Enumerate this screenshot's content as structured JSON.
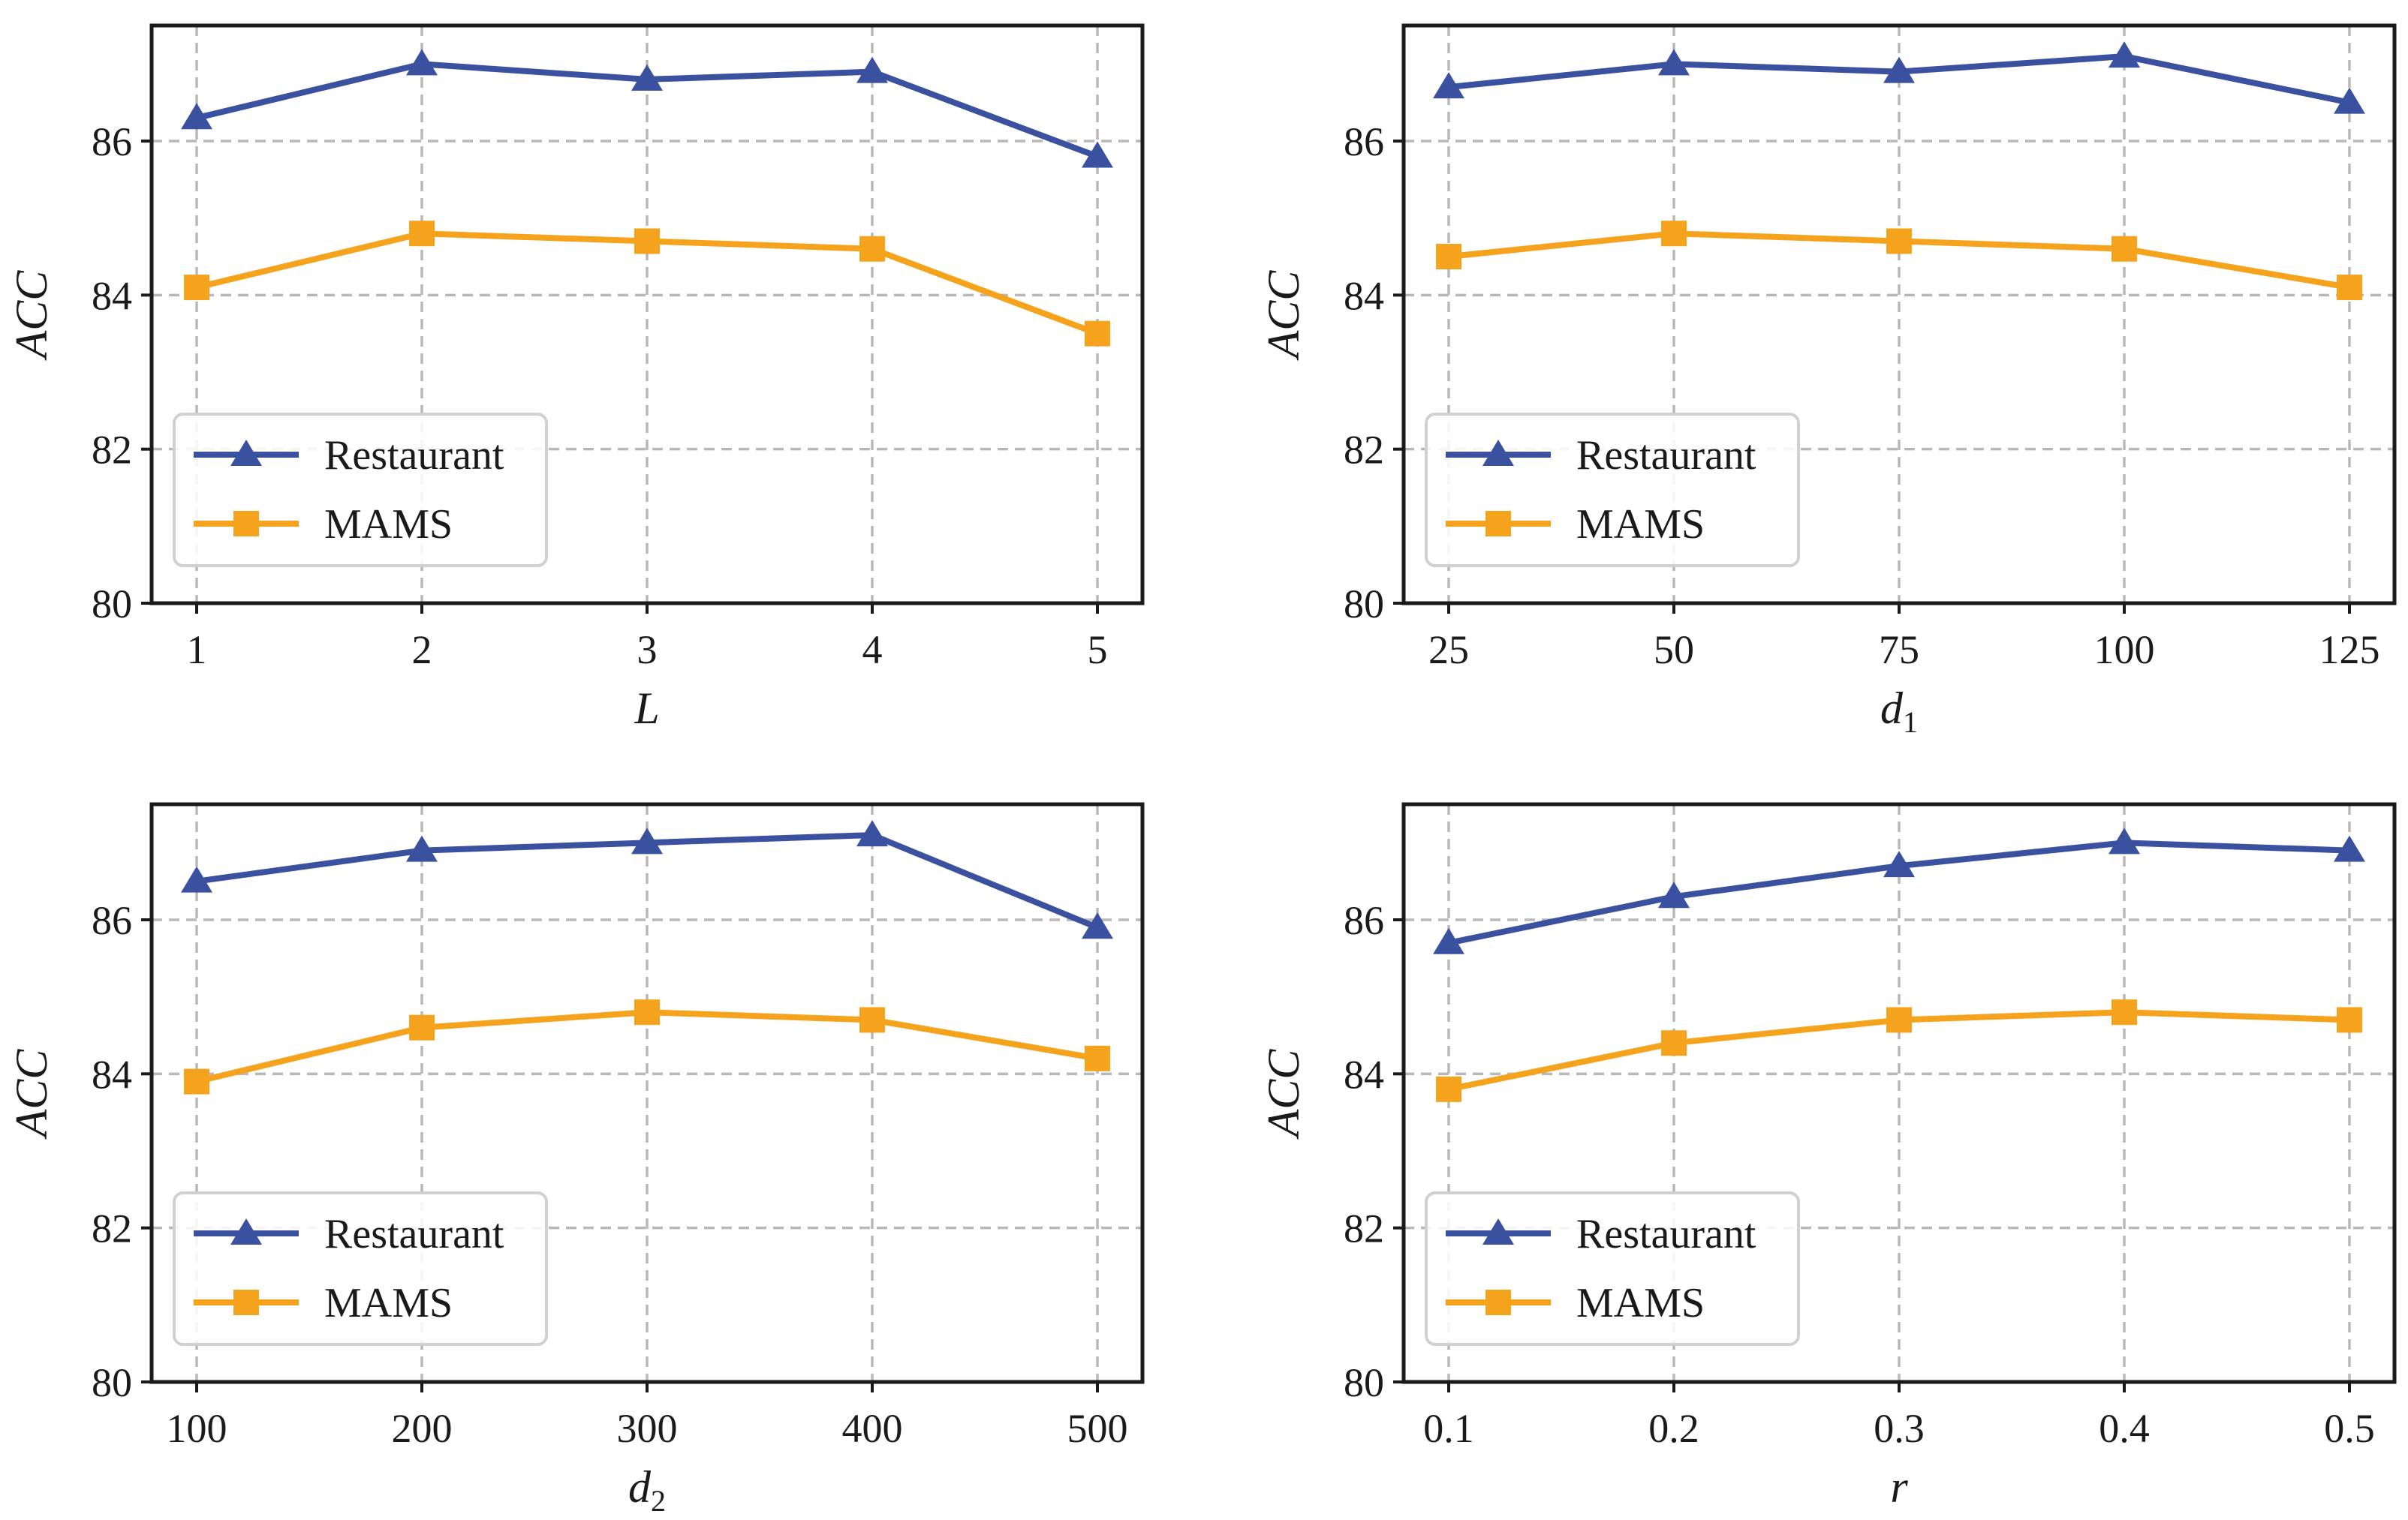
{
  "colors": {
    "restaurant": "#3a51a0",
    "mams": "#f5a31c"
  },
  "chart_data": [
    {
      "type": "line",
      "xlabel": "L",
      "xlabel_sub": "",
      "ylabel": "ACC",
      "categories": [
        "1",
        "2",
        "3",
        "4",
        "5"
      ],
      "yticks": [
        "80",
        "82",
        "84",
        "86"
      ],
      "ylim": [
        80,
        87.5
      ],
      "grid": true,
      "legend": {
        "placement": "lower-left",
        "entries": [
          "Restaurant",
          "MAMS"
        ]
      },
      "series": [
        {
          "name": "Restaurant",
          "marker": "triangle",
          "values": [
            86.3,
            87.0,
            86.8,
            86.9,
            85.8
          ]
        },
        {
          "name": "MAMS",
          "marker": "square",
          "values": [
            84.1,
            84.8,
            84.7,
            84.6,
            83.5
          ]
        }
      ]
    },
    {
      "type": "line",
      "xlabel": "d",
      "xlabel_sub": "1",
      "ylabel": "ACC",
      "categories": [
        "25",
        "50",
        "75",
        "100",
        "125"
      ],
      "yticks": [
        "80",
        "82",
        "84",
        "86"
      ],
      "ylim": [
        80,
        87.5
      ],
      "grid": true,
      "legend": {
        "placement": "lower-left",
        "entries": [
          "Restaurant",
          "MAMS"
        ]
      },
      "series": [
        {
          "name": "Restaurant",
          "marker": "triangle",
          "values": [
            86.7,
            87.0,
            86.9,
            87.1,
            86.5
          ]
        },
        {
          "name": "MAMS",
          "marker": "square",
          "values": [
            84.5,
            84.8,
            84.7,
            84.6,
            84.1
          ]
        }
      ]
    },
    {
      "type": "line",
      "xlabel": "d",
      "xlabel_sub": "2",
      "ylabel": "ACC",
      "categories": [
        "100",
        "200",
        "300",
        "400",
        "500"
      ],
      "yticks": [
        "80",
        "82",
        "84",
        "86"
      ],
      "ylim": [
        80,
        87.5
      ],
      "grid": true,
      "legend": {
        "placement": "lower-left",
        "entries": [
          "Restaurant",
          "MAMS"
        ]
      },
      "series": [
        {
          "name": "Restaurant",
          "marker": "triangle",
          "values": [
            86.5,
            86.9,
            87.0,
            87.1,
            85.9
          ]
        },
        {
          "name": "MAMS",
          "marker": "square",
          "values": [
            83.9,
            84.6,
            84.8,
            84.7,
            84.2
          ]
        }
      ]
    },
    {
      "type": "line",
      "xlabel": "r",
      "xlabel_sub": "",
      "ylabel": "ACC",
      "categories": [
        "0.1",
        "0.2",
        "0.3",
        "0.4",
        "0.5"
      ],
      "yticks": [
        "80",
        "82",
        "84",
        "86"
      ],
      "ylim": [
        80,
        87.5
      ],
      "grid": true,
      "legend": {
        "placement": "lower-left",
        "entries": [
          "Restaurant",
          "MAMS"
        ]
      },
      "series": [
        {
          "name": "Restaurant",
          "marker": "triangle",
          "values": [
            85.7,
            86.3,
            86.7,
            87.0,
            86.9
          ]
        },
        {
          "name": "MAMS",
          "marker": "square",
          "values": [
            83.8,
            84.4,
            84.7,
            84.8,
            84.7
          ]
        }
      ]
    }
  ]
}
